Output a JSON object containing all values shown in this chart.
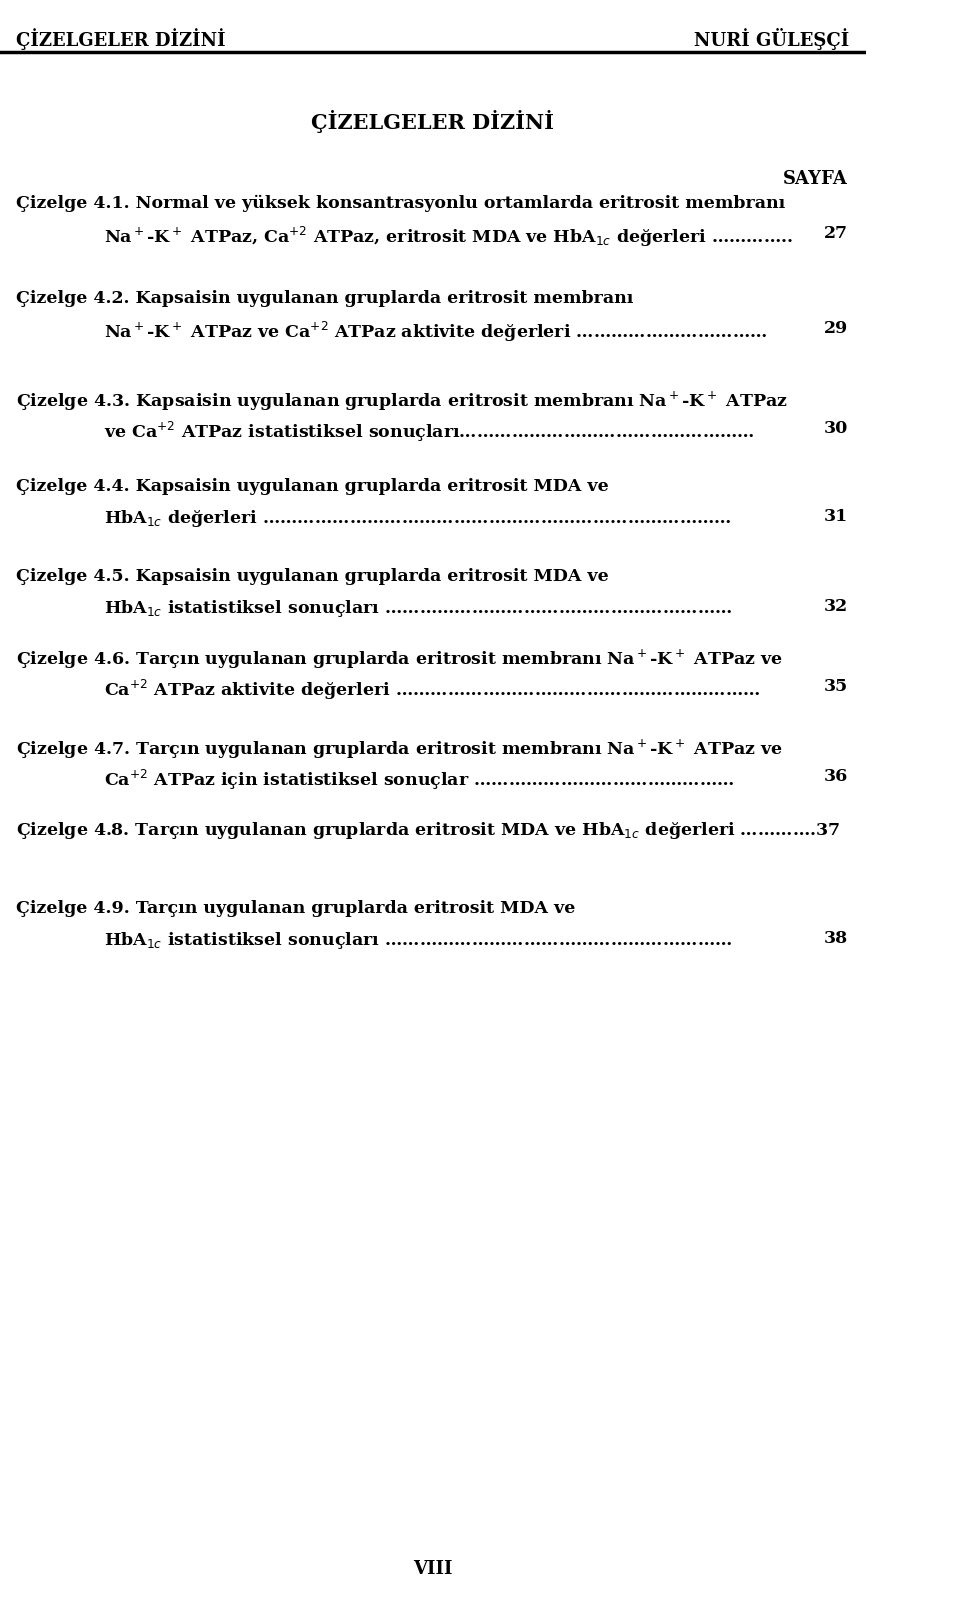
{
  "bg_color": "#ffffff",
  "header_left": "ÇİZELGELER DİZİNİ",
  "header_right": "NURİ GÜLEŞÇİ",
  "page_title": "ÇİZELGELER DİZİNİ",
  "sayfa_label": "SAYFA",
  "footer_text": "VIII",
  "entries": [
    {
      "number": "Çizelge 4.1.",
      "lines": [
        {
          "text": "Normal ve yüksek konsantrasyonlu ortamlarda eritrosit membranı",
          "indent": false
        },
        {
          "text": "Na$^+$-K$^+$ ATPaz, Ca$^{+2}$ ATPaz, eritrosit MDA ve HbA$_{1c}$ değerleri …………..",
          "indent": true
        }
      ],
      "page": "27"
    },
    {
      "number": "Çizelge 4.2.",
      "lines": [
        {
          "text": "Kapsaisin uygulanan gruplarda eritrosit membranı",
          "indent": false
        },
        {
          "text": "Na$^+$-K$^+$ ATPaz ve Ca$^{+2}$ ATPaz aktivite değerleri ……………………………",
          "indent": true
        }
      ],
      "page": "29"
    },
    {
      "number": "Çizelge 4.3.",
      "lines": [
        {
          "text": "Kapsaisin uygulanan gruplarda eritrosit membranı Na$^+$-K$^+$ ATPaz",
          "indent": false
        },
        {
          "text": "ve Ca$^{+2}$ ATPaz istatistiksel sonuçları……………………………………………",
          "indent": true
        }
      ],
      "page": "30"
    },
    {
      "number": "Çizelge 4.4.",
      "lines": [
        {
          "text": "Kapsaisin uygulanan gruplarda eritrosit MDA ve",
          "indent": false
        },
        {
          "text": "HbA$_{1c}$ değerleri ………………………………………………………………………",
          "indent": true
        }
      ],
      "page": "31"
    },
    {
      "number": "Çizelge 4.5.",
      "lines": [
        {
          "text": "Kapsaisin uygulanan gruplarda eritrosit MDA ve",
          "indent": false
        },
        {
          "text": "HbA$_{1c}$ istatistiksel sonuçları ……………………………………………………",
          "indent": true
        }
      ],
      "page": "32"
    },
    {
      "number": "Çizelge 4.6.",
      "lines": [
        {
          "text": "Tarçın uygulanan gruplarda eritrosit membranı Na$^+$-K$^+$ ATPaz ve",
          "indent": false
        },
        {
          "text": "Ca$^{+2}$ ATPaz aktivite değerleri ………………………………………………………",
          "indent": true
        }
      ],
      "page": "35"
    },
    {
      "number": "Çizelge 4.7.",
      "lines": [
        {
          "text": "Tarçın uygulanan gruplarda eritrosit membranı Na$^+$-K$^+$ ATPaz ve",
          "indent": false
        },
        {
          "text": "Ca$^{+2}$ ATPaz için istatistiksel sonuçlar ………………………………………",
          "indent": true
        }
      ],
      "page": "36"
    },
    {
      "number": "Çizelge 4.8.",
      "lines": [
        {
          "text": "Tarçın uygulanan gruplarda eritrosit MDA ve HbA$_{1c}$ değerleri ………….37",
          "indent": false
        }
      ],
      "page": ""
    },
    {
      "number": "Çizelge 4.9.",
      "lines": [
        {
          "text": "Tarçın uygulanan gruplarda eritrosit MDA ve",
          "indent": false
        },
        {
          "text": "HbA$_{1c}$ istatistiksel sonuçları ……………………………………………………",
          "indent": true
        }
      ],
      "page": "38"
    }
  ]
}
